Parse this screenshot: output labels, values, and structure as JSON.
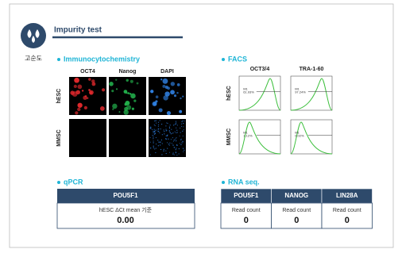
{
  "header": {
    "title": "Impurity test",
    "icon_label": "고순도"
  },
  "icc": {
    "title": "Immunocytochemistry",
    "columns": [
      "OCT4",
      "Nanog",
      "DAPI"
    ],
    "rows": [
      "hESC",
      "MMSC"
    ]
  },
  "facs": {
    "title": "FACS",
    "columns": [
      "OCT3/4",
      "TRA-1-60"
    ],
    "rows": [
      "hESC",
      "MMSC"
    ],
    "gates": [
      [
        "M1",
        "61.93%"
      ],
      [
        "M1",
        "97.24%"
      ],
      [
        "M1",
        "1.12%"
      ],
      [
        "M1",
        "0.02%"
      ]
    ]
  },
  "qpcr": {
    "title": "qPCR",
    "header": "POU5F1",
    "sub": "hESC ΔCt mean 기준",
    "value": "0.00"
  },
  "rnaseq": {
    "title": "RNA seq.",
    "headers": [
      "POU5F1",
      "NANOG",
      "LIN28A"
    ],
    "subs": [
      "Read count",
      "Read count",
      "Read count"
    ],
    "values": [
      "0",
      "0",
      "0"
    ]
  }
}
